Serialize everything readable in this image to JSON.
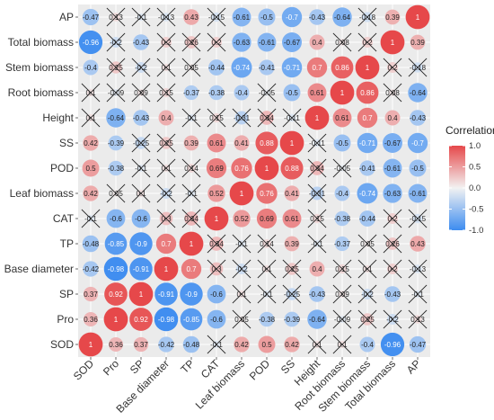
{
  "chart_data": {
    "type": "heatmap",
    "variables_bottom_to_top": [
      "SOD",
      "Pro",
      "SP",
      "Base diameter",
      "TP",
      "CAT",
      "Leaf biomass",
      "POD",
      "SS",
      "Height",
      "Root biomass",
      "Stem biomass",
      "Total biomass",
      "AP"
    ],
    "row_labels_top_to_bottom": [
      "AP",
      "Total biomass",
      "Stem biomass",
      "Root biomass",
      "Height",
      "SS",
      "POD",
      "Leaf biomass",
      "CAT",
      "TP",
      "Base diameter",
      "SP",
      "Pro",
      "SOD"
    ],
    "col_labels": [
      "SOD",
      "Pro",
      "SP",
      "Base diameter",
      "TP",
      "CAT",
      "Leaf biomass",
      "POD",
      "SS",
      "Height",
      "Root biomass",
      "Stem biomass",
      "Total biomass",
      "AP"
    ],
    "matrix": [
      [
        1,
        0.36,
        0.37,
        -0.42,
        -0.48,
        -0.1,
        0.42,
        0.5,
        0.42,
        0.1,
        0.1,
        -0.4,
        -0.96,
        -0.47
      ],
      [
        0.36,
        1,
        0.92,
        -0.98,
        -0.85,
        -0.6,
        0.05,
        -0.38,
        -0.39,
        -0.64,
        -0.09,
        0.25,
        -0.2,
        0.13
      ],
      [
        0.37,
        0.92,
        1,
        -0.91,
        -0.9,
        -0.6,
        0.1,
        -0.1,
        -0.25,
        -0.43,
        0.09,
        -0.2,
        -0.43,
        -0.1
      ],
      [
        -0.42,
        -0.98,
        -0.91,
        1,
        0.7,
        0.3,
        -0.2,
        0.1,
        0.25,
        0.4,
        0.15,
        0.1,
        0.2,
        -0.13
      ],
      [
        -0.48,
        -0.85,
        -0.9,
        0.7,
        1,
        0.34,
        -0.1,
        0.14,
        0.39,
        -0.1,
        -0.37,
        0.05,
        0.26,
        0.43
      ],
      [
        -0.1,
        -0.6,
        -0.6,
        0.3,
        0.34,
        1,
        0.52,
        0.69,
        0.61,
        0.15,
        -0.38,
        -0.44,
        0.2,
        -0.15
      ],
      [
        0.42,
        0.05,
        0.1,
        -0.2,
        -0.1,
        0.52,
        1,
        0.76,
        0.41,
        -0.31,
        -0.4,
        -0.74,
        -0.63,
        -0.61
      ],
      [
        0.5,
        -0.38,
        -0.1,
        0.1,
        0.14,
        0.69,
        0.76,
        1,
        0.88,
        0.34,
        -0.05,
        -0.41,
        -0.61,
        -0.5
      ],
      [
        0.42,
        -0.39,
        -0.25,
        0.25,
        0.39,
        0.61,
        0.41,
        0.88,
        1,
        -0.11,
        -0.5,
        -0.71,
        -0.67,
        -0.7
      ],
      [
        0.1,
        -0.64,
        -0.43,
        0.4,
        -0.1,
        0.15,
        -0.31,
        0.34,
        -0.11,
        1,
        0.61,
        0.7,
        0.4,
        -0.43
      ],
      [
        0.1,
        -0.09,
        0.09,
        0.15,
        -0.37,
        -0.38,
        -0.4,
        -0.05,
        -0.5,
        0.61,
        1,
        0.86,
        0.08,
        -0.64
      ],
      [
        -0.4,
        0.25,
        -0.2,
        0.1,
        0.05,
        -0.44,
        -0.74,
        -0.41,
        -0.71,
        0.7,
        0.86,
        1,
        0.2,
        -0.18
      ],
      [
        -0.96,
        -0.2,
        -0.43,
        0.2,
        0.26,
        0.2,
        -0.63,
        -0.61,
        -0.67,
        0.4,
        0.08,
        0.2,
        1,
        0.39
      ],
      [
        -0.47,
        0.13,
        -0.1,
        -0.13,
        0.43,
        -0.15,
        -0.61,
        -0.5,
        -0.7,
        -0.43,
        -0.64,
        -0.18,
        0.39,
        1
      ]
    ],
    "labels": [
      [
        "1",
        "0.36",
        "0.37",
        "-0.42",
        "-0.48",
        "-0.1",
        "0.42",
        "0.5",
        "0.42",
        "0.1",
        "0.1",
        "-0.4",
        "-0.96",
        "-0.47"
      ],
      [
        "0.36",
        "1",
        "0.92",
        "-0.98",
        "-0.85",
        "-0.6",
        "0.05",
        "-0.38",
        "-0.39",
        "-0.64",
        "-0.09",
        "0.25",
        "-0.2",
        "0.13"
      ],
      [
        "0.37",
        "0.92",
        "1",
        "-0.91",
        "-0.9",
        "-0.6",
        "0.1",
        "-0.1",
        "-0.25",
        "-0.43",
        "0.09",
        "-0.2",
        "-0.43",
        "-0.1"
      ],
      [
        "-0.42",
        "-0.98",
        "-0.91",
        "1",
        "0.7",
        "0.3",
        "-0.2",
        "0.1",
        "0.25",
        "0.4",
        "0.15",
        "0.1",
        "0.2",
        "-0.13"
      ],
      [
        "-0.48",
        "-0.85",
        "-0.9",
        "0.7",
        "1",
        "0.34",
        "-0.1",
        "0.14",
        "0.39",
        "-0.1",
        "-0.37",
        "0.05",
        "0.26",
        "0.43"
      ],
      [
        "-0.1",
        "-0.6",
        "-0.6",
        "0.3",
        "0.34",
        "1",
        "0.52",
        "0.69",
        "0.61",
        "0.15",
        "-0.38",
        "-0.44",
        "0.2",
        "-0.15"
      ],
      [
        "0.42",
        "0.05",
        "0.1",
        "-0.2",
        "-0.1",
        "0.52",
        "1",
        "0.76",
        "0.41",
        "-0.31",
        "-0.4",
        "-0.74",
        "-0.63",
        "-0.61"
      ],
      [
        "0.5",
        "-0.38",
        "-0.1",
        "0.1",
        "0.14",
        "0.69",
        "0.76",
        "1",
        "0.88",
        "0.34",
        "-0.05",
        "-0.41",
        "-0.61",
        "-0.5"
      ],
      [
        "0.42",
        "-0.39",
        "-0.25",
        "0.25",
        "0.39",
        "0.61",
        "0.41",
        "0.88",
        "1",
        "-0.11",
        "-0.5",
        "-0.71",
        "-0.67",
        "-0.7"
      ],
      [
        "0.1",
        "-0.64",
        "-0.43",
        "0.4",
        "-0.1",
        "0.15",
        "-0.31",
        "0.34",
        "-0.11",
        "1",
        "0.61",
        "0.7",
        "0.4",
        "-0.43"
      ],
      [
        "0.1",
        "-0.09",
        "0.09",
        "0.15",
        "-0.37",
        "-0.38",
        "-0.4",
        "-0.05",
        "-0.5",
        "0.61",
        "1",
        "0.86",
        "0.08",
        "-0.64"
      ],
      [
        "-0.4",
        "0.25",
        "-0.2",
        "0.1",
        "0.05",
        "-0.44",
        "-0.74",
        "-0.41",
        "-0.71",
        "0.7",
        "0.86",
        "1",
        "0.2",
        "-0.18"
      ],
      [
        "-0.96",
        "-0.2",
        "-0.43",
        "0.2",
        "0.26",
        "0.2",
        "-0.63",
        "-0.61",
        "-0.67",
        "0.4",
        "0.08",
        "0.2",
        "1",
        "0.39"
      ],
      [
        "-0.47",
        "0.13",
        "-0.1",
        "-0.13",
        "0.43",
        "-0.15",
        "-0.61",
        "-0.5",
        "-0.7",
        "-0.43",
        "-0.64",
        "-0.18",
        "0.39",
        "1"
      ]
    ],
    "nonsignificant_marker": "cross",
    "nonsignificant_abs_threshold": 0.35,
    "color_scale": {
      "min": -1.0,
      "max": 1.0,
      "negative_color": "#3d8cf0",
      "zero_color": "#f2f2f2",
      "positive_color": "#e6484a"
    },
    "legend": {
      "title": "Correlation",
      "ticks": [
        1.0,
        0.5,
        0.0,
        -0.5,
        -1.0
      ],
      "tick_labels": [
        "1.0",
        "0.5",
        "0.0",
        "-0.5",
        "-1.0"
      ],
      "placement": "right"
    },
    "panel_background": "#ebebeb",
    "grid": true
  }
}
